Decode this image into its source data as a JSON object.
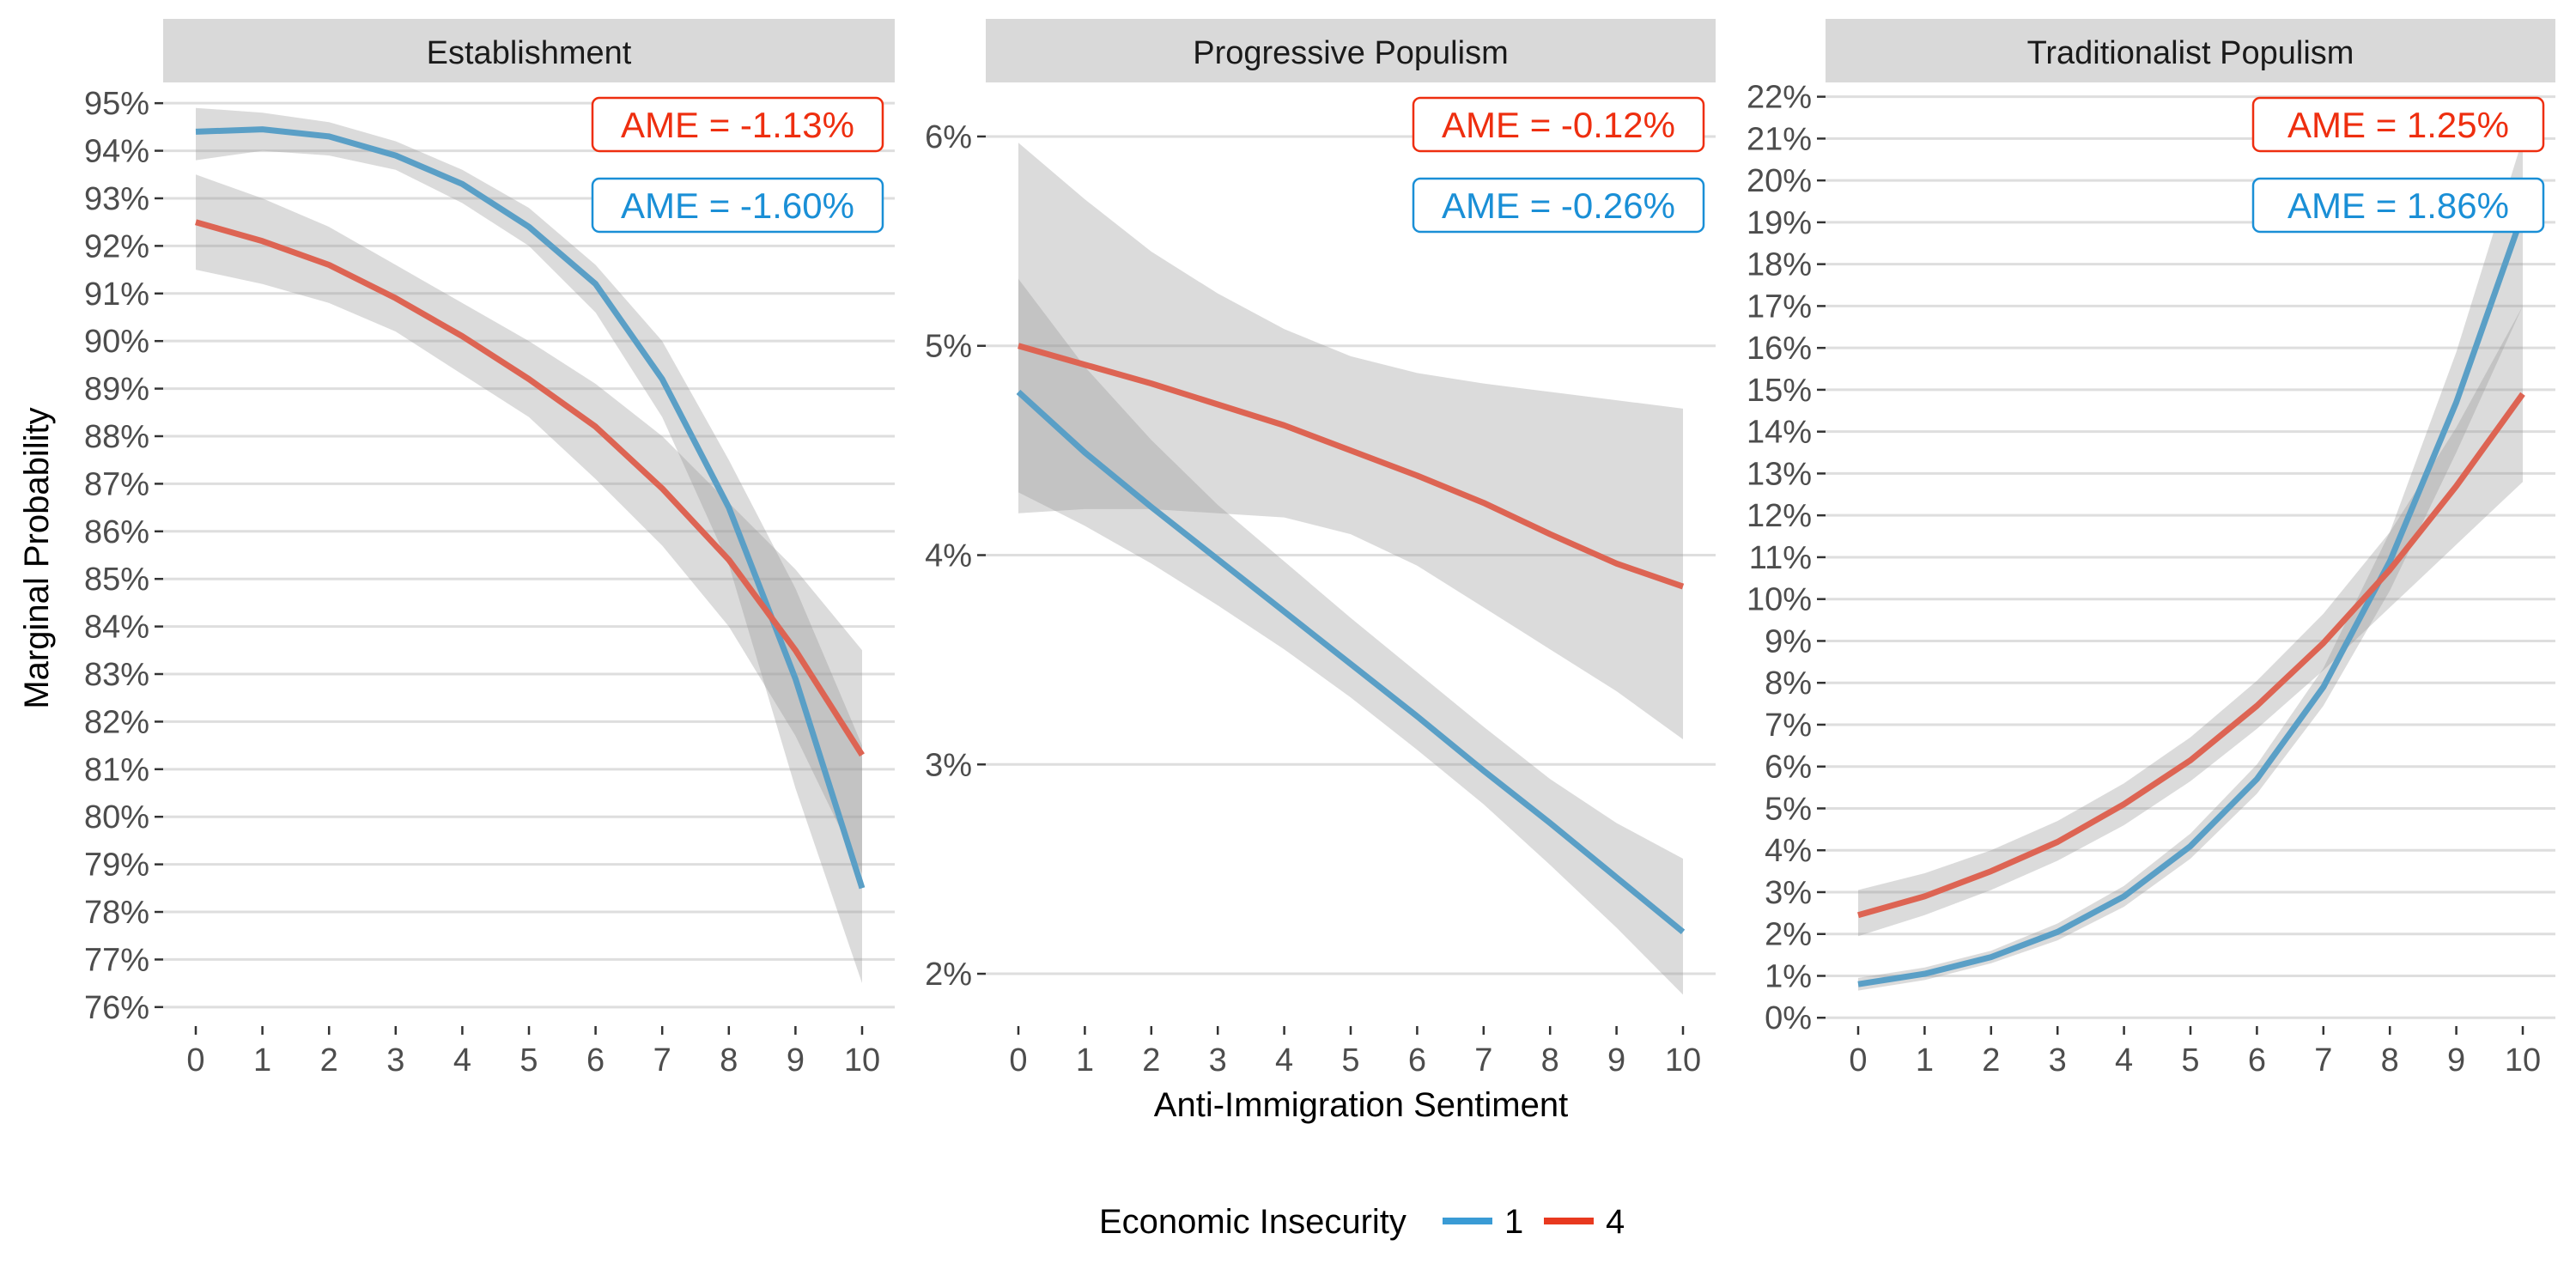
{
  "chart_data": {
    "type": "line",
    "xlabel": "Anti-Immigration Sentiment",
    "ylabel": "Marginal Probability",
    "x": [
      0,
      1,
      2,
      3,
      4,
      5,
      6,
      7,
      8,
      9,
      10
    ],
    "legend": {
      "title": "Economic Insecurity",
      "position": "bottom",
      "entries": [
        {
          "name": "1",
          "color": "#3a9bd5"
        },
        {
          "name": "4",
          "color": "#e8391f"
        }
      ]
    },
    "colors": {
      "series_1_line": "#5a9fc6",
      "series_4_line": "#dd6453",
      "ame_1": "#1a8fd6",
      "ame_4": "#ee2e0f",
      "strip": "#d9d9d9",
      "band": "#999999"
    },
    "panels": [
      {
        "title": "Establishment",
        "ylim": [
          75.6,
          95.4
        ],
        "yticks": [
          76,
          77,
          78,
          79,
          80,
          81,
          82,
          83,
          84,
          85,
          86,
          87,
          88,
          89,
          90,
          91,
          92,
          93,
          94,
          95
        ],
        "ytick_labels": [
          "76%",
          "77%",
          "78%",
          "79%",
          "80%",
          "81%",
          "82%",
          "83%",
          "84%",
          "85%",
          "86%",
          "87%",
          "88%",
          "89%",
          "90%",
          "91%",
          "92%",
          "93%",
          "94%",
          "95%"
        ],
        "xtick_labels": [
          "0",
          "1",
          "2",
          "3",
          "4",
          "5",
          "6",
          "7",
          "8",
          "9",
          "10"
        ],
        "annotations": [
          "AME = -1.13%",
          "AME = -1.60%"
        ],
        "series": [
          {
            "name": "1",
            "values": [
              94.4,
              94.45,
              94.3,
              93.9,
              93.3,
              92.4,
              91.2,
              89.2,
              86.5,
              82.9,
              78.5
            ],
            "lower": [
              93.8,
              94.0,
              93.9,
              93.6,
              92.9,
              92.0,
              90.6,
              88.4,
              85.3,
              80.6,
              76.5
            ],
            "upper": [
              94.9,
              94.8,
              94.6,
              94.2,
              93.6,
              92.8,
              91.6,
              90.0,
              87.5,
              84.8,
              81.5
            ]
          },
          {
            "name": "4",
            "values": [
              92.5,
              92.1,
              91.6,
              90.9,
              90.1,
              89.2,
              88.2,
              86.9,
              85.4,
              83.5,
              81.3
            ],
            "lower": [
              91.5,
              91.2,
              90.8,
              90.2,
              89.3,
              88.4,
              87.1,
              85.7,
              84.0,
              81.7,
              78.8
            ],
            "upper": [
              93.5,
              93.0,
              92.4,
              91.6,
              90.8,
              90.0,
              89.1,
              88.0,
              86.6,
              85.2,
              83.5
            ]
          }
        ]
      },
      {
        "title": "Progressive Populism",
        "ylim": [
          1.75,
          6.25
        ],
        "yticks": [
          2,
          3,
          4,
          5,
          6
        ],
        "ytick_labels": [
          "2%",
          "3%",
          "4%",
          "5%",
          "6%"
        ],
        "xtick_labels": [
          "0",
          "1",
          "2",
          "3",
          "4",
          "5",
          "6",
          "7",
          "8",
          "9",
          "10"
        ],
        "annotations": [
          "AME = -0.12%",
          "AME = -0.26%"
        ],
        "series": [
          {
            "name": "1",
            "values": [
              4.78,
              4.49,
              4.23,
              3.98,
              3.73,
              3.48,
              3.23,
              2.97,
              2.72,
              2.46,
              2.2
            ],
            "lower": [
              4.3,
              4.14,
              3.96,
              3.76,
              3.55,
              3.32,
              3.07,
              2.81,
              2.52,
              2.22,
              1.9
            ],
            "upper": [
              5.32,
              4.9,
              4.55,
              4.24,
              3.97,
              3.7,
              3.44,
              3.18,
              2.93,
              2.72,
              2.55
            ]
          },
          {
            "name": "4",
            "values": [
              5.0,
              4.91,
              4.82,
              4.72,
              4.62,
              4.5,
              4.38,
              4.25,
              4.1,
              3.96,
              3.85
            ],
            "lower": [
              4.2,
              4.22,
              4.22,
              4.2,
              4.18,
              4.1,
              3.95,
              3.75,
              3.55,
              3.35,
              3.12
            ],
            "upper": [
              5.97,
              5.7,
              5.45,
              5.25,
              5.08,
              4.95,
              4.87,
              4.82,
              4.78,
              4.74,
              4.7
            ]
          }
        ]
      },
      {
        "title": "Traditionalist Populism",
        "ylim": [
          -0.2,
          22.3
        ],
        "yticks": [
          0,
          1,
          2,
          3,
          4,
          5,
          6,
          7,
          8,
          9,
          10,
          11,
          12,
          13,
          14,
          15,
          16,
          17,
          18,
          19,
          20,
          21,
          22
        ],
        "ytick_labels": [
          "0%",
          "1%",
          "2%",
          "3%",
          "4%",
          "5%",
          "6%",
          "7%",
          "8%",
          "9%",
          "10%",
          "11%",
          "12%",
          "13%",
          "14%",
          "15%",
          "16%",
          "17%",
          "18%",
          "19%",
          "20%",
          "21%",
          "22%"
        ],
        "xtick_labels": [
          "0",
          "1",
          "2",
          "3",
          "4",
          "5",
          "6",
          "7",
          "8",
          "9",
          "10"
        ],
        "annotations": [
          "AME = 1.25%",
          "AME = 1.86%"
        ],
        "series": [
          {
            "name": "1",
            "values": [
              0.8,
              1.05,
              1.45,
              2.05,
              2.9,
              4.1,
              5.7,
              7.9,
              10.9,
              14.7,
              19.2
            ],
            "lower": [
              0.65,
              0.9,
              1.3,
              1.85,
              2.65,
              3.8,
              5.35,
              7.45,
              10.2,
              13.5,
              17.0
            ],
            "upper": [
              0.95,
              1.2,
              1.6,
              2.25,
              3.15,
              4.4,
              6.05,
              8.35,
              11.6,
              15.9,
              21.0
            ]
          },
          {
            "name": "4",
            "values": [
              2.45,
              2.9,
              3.5,
              4.2,
              5.1,
              6.15,
              7.45,
              8.95,
              10.7,
              12.7,
              14.9
            ],
            "lower": [
              1.95,
              2.45,
              3.05,
              3.75,
              4.6,
              5.65,
              6.9,
              8.3,
              9.8,
              11.3,
              12.8
            ],
            "upper": [
              3.05,
              3.45,
              4.0,
              4.7,
              5.6,
              6.7,
              8.05,
              9.65,
              11.6,
              14.1,
              17.0
            ]
          }
        ]
      }
    ]
  }
}
